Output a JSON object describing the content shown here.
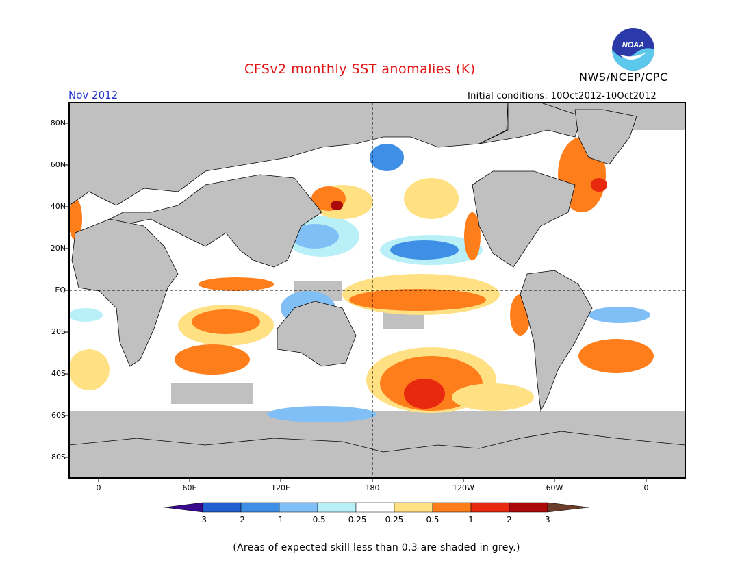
{
  "title": "CFSv2 monthly SST anomalies (K)",
  "agency": "NWS/NCEP/CPC",
  "logo_text": "NOAA",
  "period": "Nov 2012",
  "initial_conditions": "Initial conditions: 10Oct2012-10Oct2012",
  "lat_labels": [
    "80N",
    "60N",
    "40N",
    "20N",
    "EQ",
    "20S",
    "40S",
    "60S",
    "80S"
  ],
  "lon_labels": [
    "0",
    "60E",
    "120E",
    "180",
    "120W",
    "60W",
    "0"
  ],
  "colorbar": {
    "unit": "K",
    "ticks": [
      "-3",
      "-2",
      "-1",
      "-0.5",
      "-0.25",
      "0.25",
      "0.5",
      "1",
      "2",
      "3"
    ],
    "colors": [
      "#3a0a8c",
      "#1f5fd0",
      "#3f8fe6",
      "#7fbff5",
      "#b9f0f8",
      "#ffffff",
      "#ffe083",
      "#ff7e1c",
      "#e8280f",
      "#aa0a0a",
      "#6b3d2a"
    ]
  },
  "colors": {
    "land": "#c0c0c0",
    "ocean": "#ffffff",
    "skill_mask": "#c0c0c0",
    "title": "#e01010",
    "period": "#2233cc"
  },
  "footnote": "(Areas of expected skill less than 0.3 are shaded in grey.)"
}
